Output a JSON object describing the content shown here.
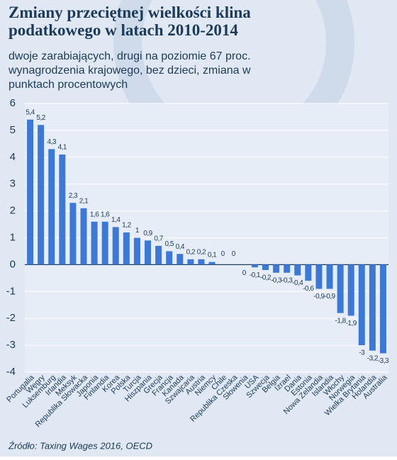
{
  "chart_data": {
    "type": "bar",
    "title": "Zmiany przeciętnej wielkości klina podatkowego w latach 2010-2014",
    "subtitle": "dwoje zarabiających, drugi na poziomie 67 proc. wynagrodzenia krajowego, bez dzieci, zmiana w punktach procentowych",
    "source": "Źródło: Taxing Wages 2016, OECD",
    "categories": [
      "Portugalia",
      "Węgry",
      "Luksemburg",
      "Irlandia",
      "Meksyk",
      "Republika Słowacka",
      "Japonia",
      "Finlandia",
      "Korea",
      "Polska",
      "Turcja",
      "Hiszpania",
      "Grecja",
      "Francja",
      "Kanada",
      "Szwajcaria",
      "Austria",
      "Niemcy",
      "Chile",
      "Republika Czeska",
      "Słowenia",
      "USA",
      "Szwecja",
      "Belgia",
      "Izrael",
      "Dania",
      "Estonia",
      "Nowa Zelandia",
      "Islandia",
      "Włochy",
      "Norwegia",
      "Wielka Brytania",
      "Holandia",
      "Australia"
    ],
    "values": [
      5.4,
      5.2,
      4.3,
      4.1,
      2.3,
      2.1,
      1.6,
      1.6,
      1.4,
      1.2,
      1,
      0.9,
      0.7,
      0.5,
      0.4,
      0.2,
      0.2,
      0.1,
      0,
      0,
      0,
      -0.1,
      -0.2,
      -0.3,
      -0.3,
      -0.4,
      -0.6,
      -0.9,
      -0.9,
      -1.8,
      -1.9,
      -3,
      -3.2,
      -3.3
    ],
    "value_labels": [
      "5,4",
      "5,2",
      "4,3",
      "4,1",
      "2,3",
      "2,1",
      "1,6",
      "1,6",
      "1,4",
      "1,2",
      "1",
      "0,9",
      "0,7",
      "0,5",
      "0,4",
      "0,2",
      "0,2",
      "0,1",
      "0",
      "0",
      "0",
      "-0,1",
      "-0,2",
      "-0,3",
      "-0,3",
      "-0,4",
      "-0,6",
      "-0,9",
      "-0,9",
      "-1,8",
      "-1,9",
      "-3",
      "-3,2",
      "-3,3"
    ],
    "color": "#3b78d8",
    "ylim": [
      -4,
      6
    ],
    "yticks": [
      -4,
      -3,
      -2,
      -1,
      0,
      1,
      2,
      3,
      4,
      5,
      6
    ],
    "grid": true
  }
}
